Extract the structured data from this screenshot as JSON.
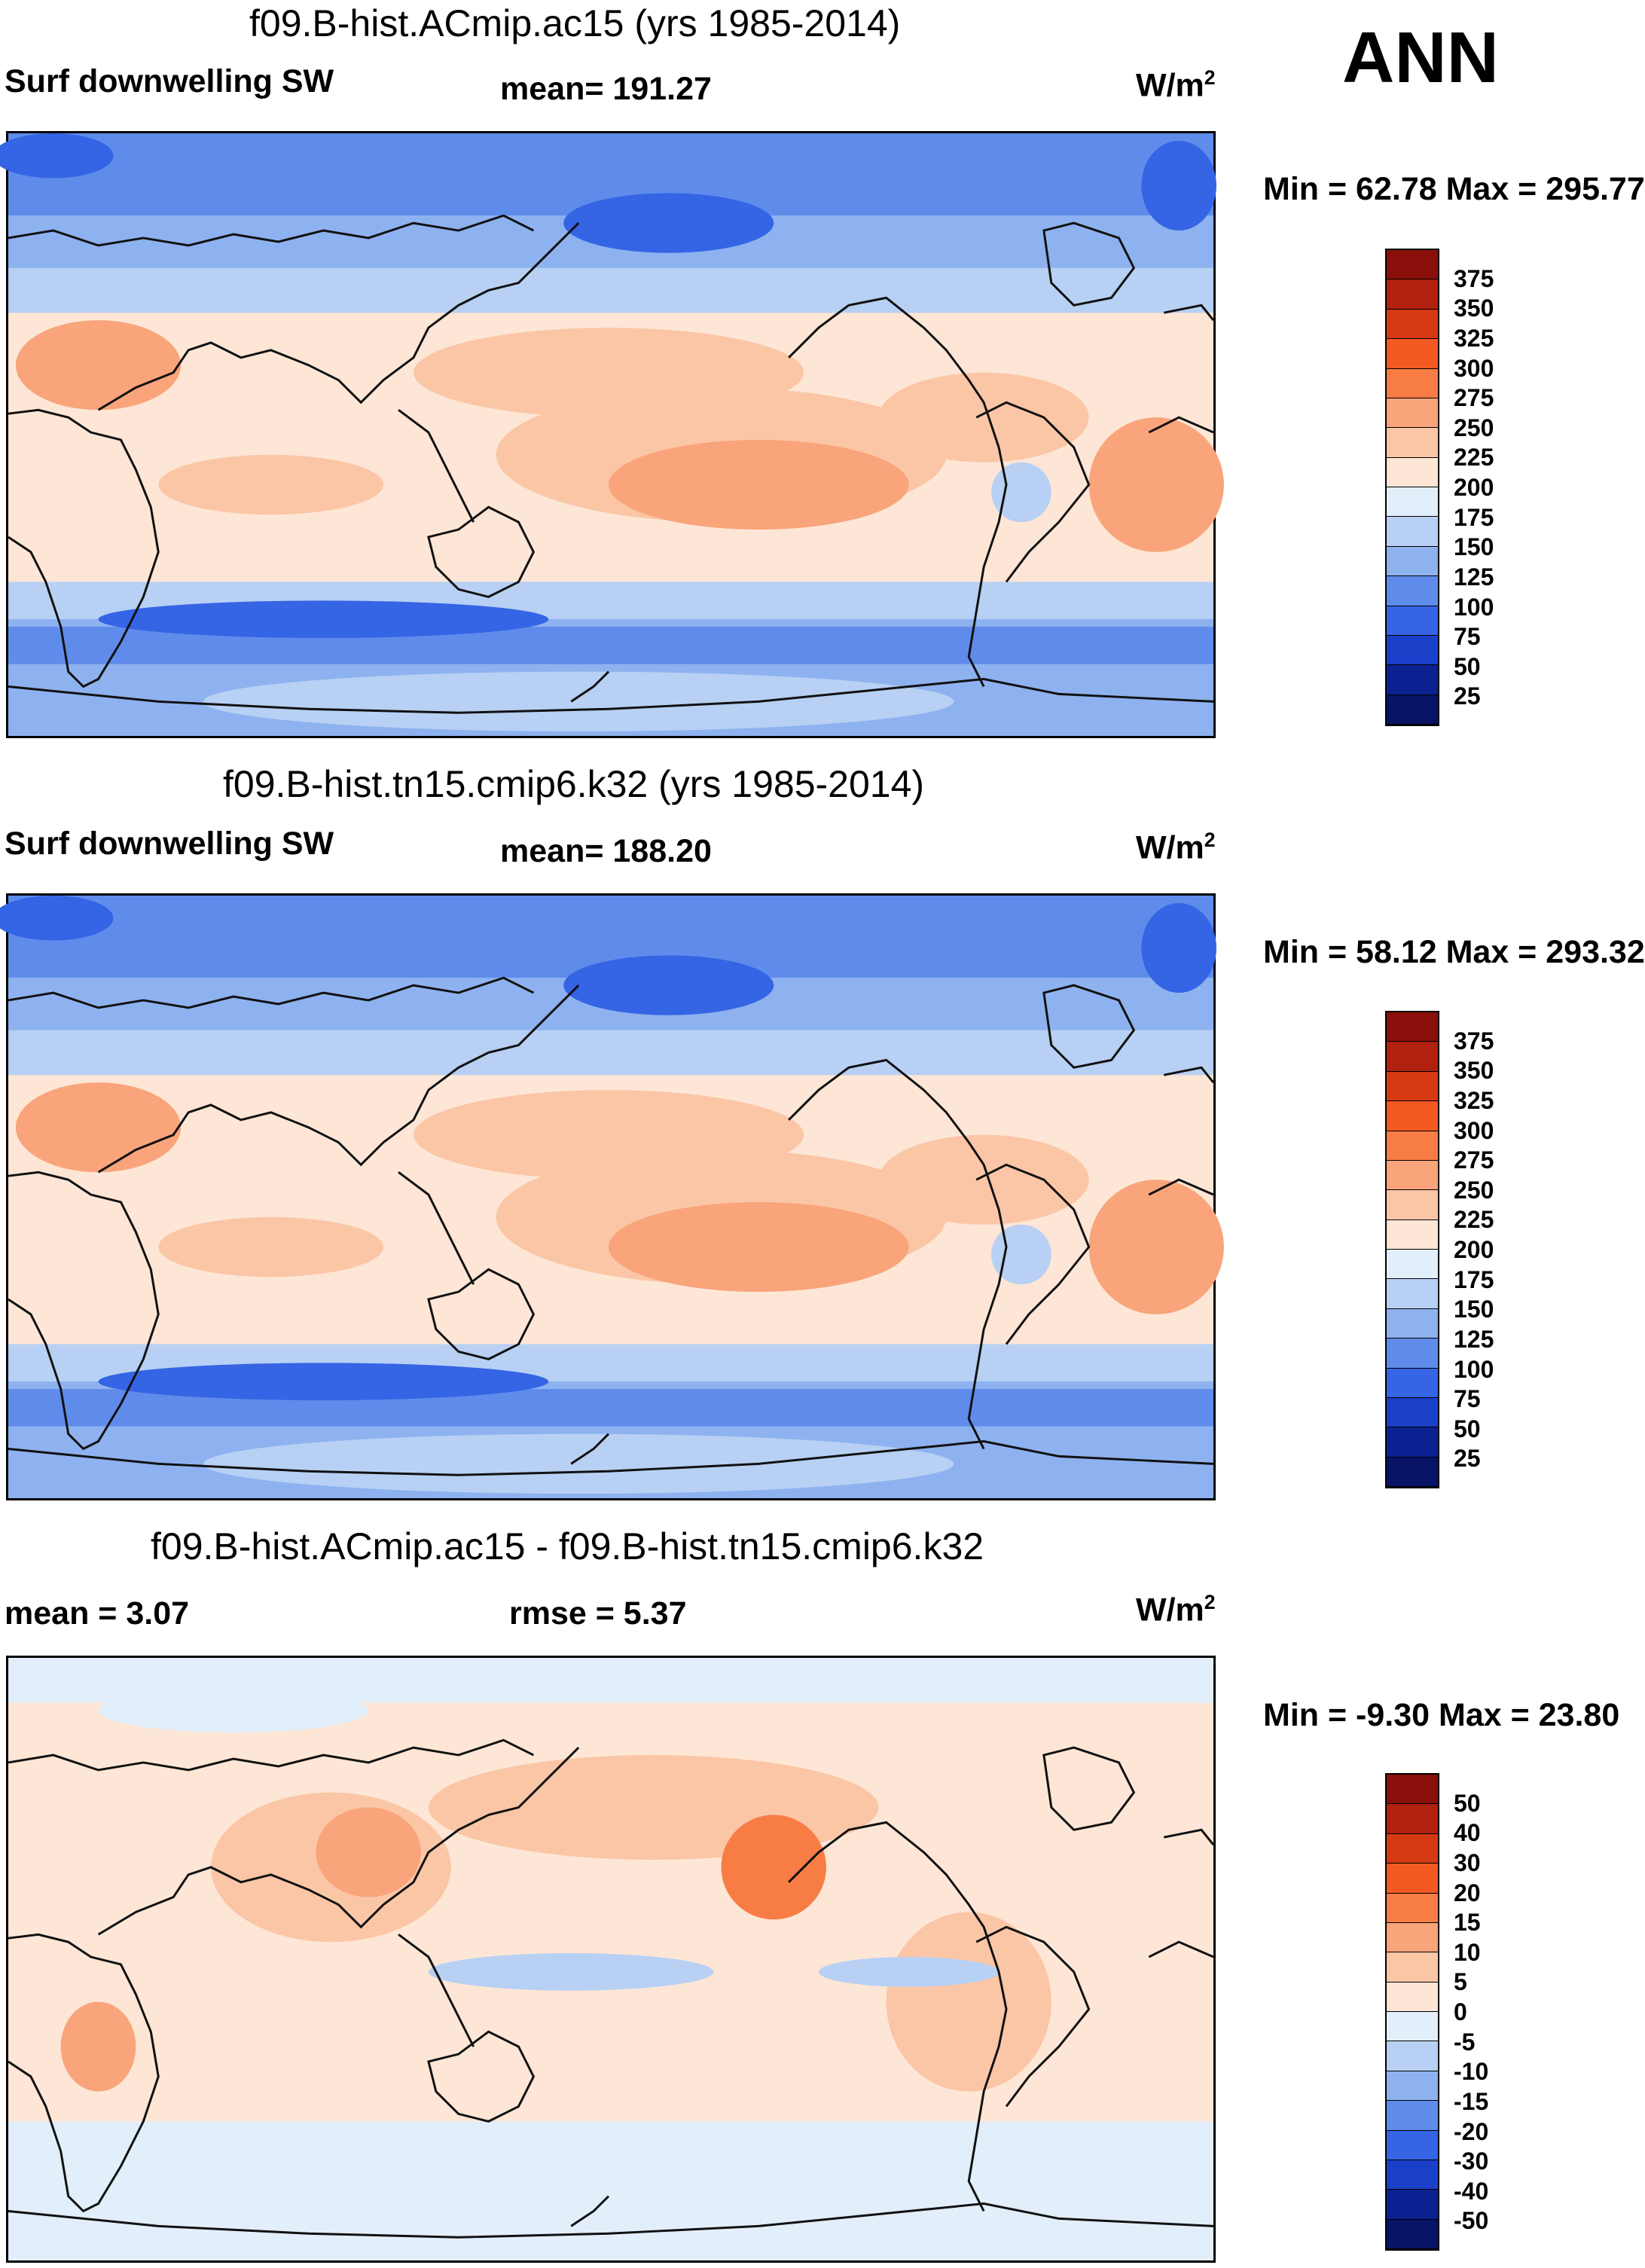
{
  "season": "ANN",
  "panels": [
    {
      "title": "f09.B-hist.ACmip.ac15 (yrs 1985-2014)",
      "left_label": "Surf downwelling SW",
      "center_label": "mean= 191.27",
      "units": "W/m",
      "units_sup": "2",
      "minmax": "Min =  62.78 Max = 295.77",
      "field": "abs"
    },
    {
      "title": "f09.B-hist.tn15.cmip6.k32 (yrs 1985-2014)",
      "left_label": "Surf downwelling SW",
      "center_label": "mean= 188.20",
      "units": "W/m",
      "units_sup": "2",
      "minmax": "Min =  58.12 Max = 293.32",
      "field": "abs"
    },
    {
      "title": "f09.B-hist.ACmip.ac15 - f09.B-hist.tn15.cmip6.k32",
      "left_label": "mean =   3.07",
      "center_label": "rmse =   5.37",
      "units": "W/m",
      "units_sup": "2",
      "minmax": "Min =  -9.30 Max =  23.80",
      "field": "diff"
    }
  ],
  "colorbars": {
    "abs": {
      "ticks": [
        "375",
        "350",
        "325",
        "300",
        "275",
        "250",
        "225",
        "200",
        "175",
        "150",
        "125",
        "100",
        "75",
        "50",
        "25"
      ],
      "colors": [
        "#8a0f0a",
        "#b0210f",
        "#d63a12",
        "#f25a22",
        "#f77d45",
        "#f9a47a",
        "#fbc6a6",
        "#fde6d6",
        "#e2eefa",
        "#b7d0f4",
        "#8db2ef",
        "#5f8ceb",
        "#3564e4",
        "#1a3fc9",
        "#0c2191",
        "#071364"
      ]
    },
    "diff": {
      "ticks": [
        "50",
        "40",
        "30",
        "20",
        "15",
        "10",
        "5",
        "0",
        "-5",
        "-10",
        "-15",
        "-20",
        "-30",
        "-40",
        "-50"
      ],
      "colors": [
        "#8a0f0a",
        "#b0210f",
        "#d63a12",
        "#f25a22",
        "#f77d45",
        "#f9a47a",
        "#fbc6a6",
        "#fde6d6",
        "#e2eefa",
        "#b7d0f4",
        "#8db2ef",
        "#5f8ceb",
        "#3564e4",
        "#1a3fc9",
        "#0c2191",
        "#071364"
      ]
    }
  }
}
